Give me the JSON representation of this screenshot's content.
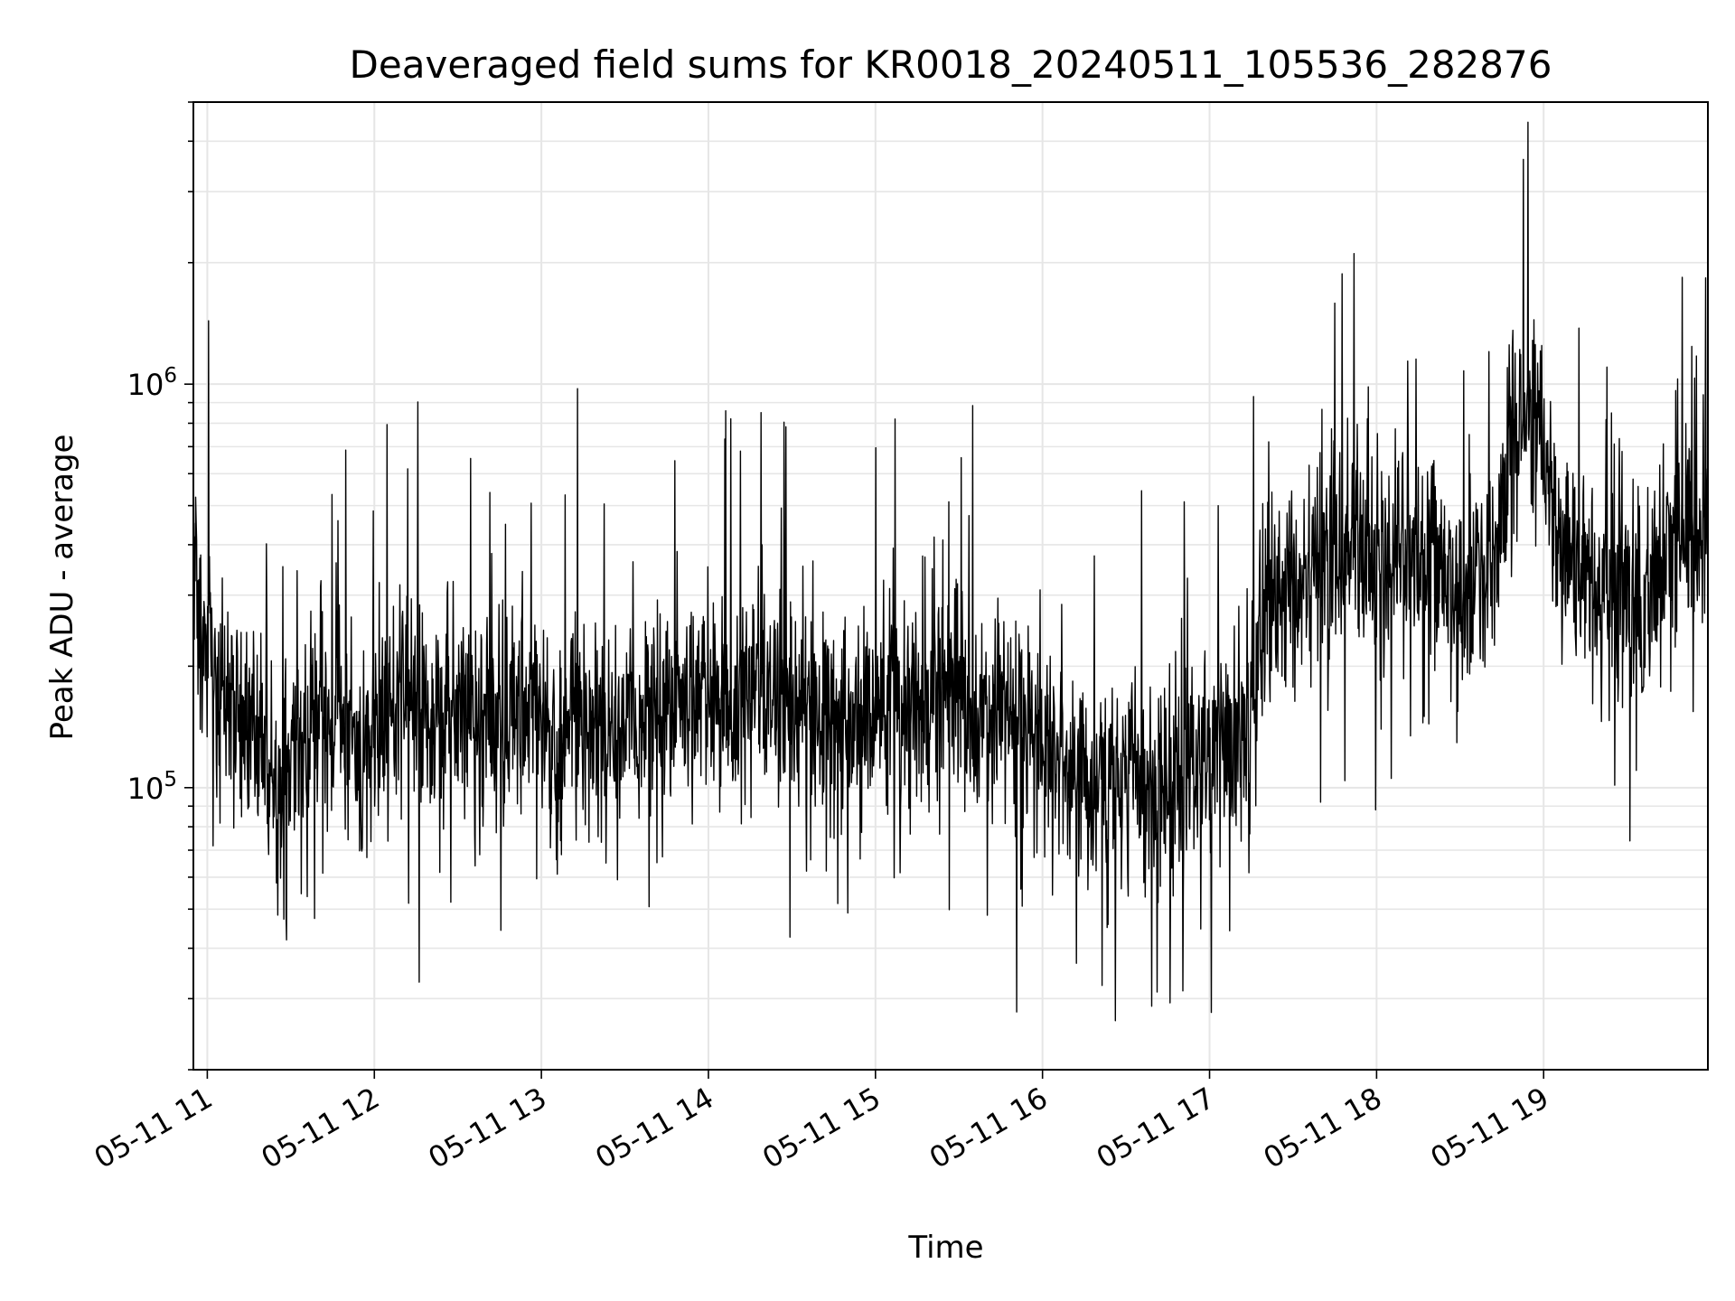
{
  "chart_data": {
    "type": "line",
    "title": "Deaveraged field sums for KR0018_20240511_105536_282876",
    "xlabel": "Time",
    "ylabel": "Peak ADU - average",
    "y_scale": "log",
    "y_tick_base": "10",
    "y_ticks": [
      {
        "value": 100000,
        "exponent": "5"
      },
      {
        "value": 1000000,
        "exponent": "6"
      }
    ],
    "ylim": [
      20000,
      5000000
    ],
    "x_range": [
      "2024-05-11 10:55",
      "2024-05-11 19:59"
    ],
    "x_ticks": [
      {
        "time": "2024-05-11 11:00",
        "label": "05-11 11"
      },
      {
        "time": "2024-05-11 12:00",
        "label": "05-11 12"
      },
      {
        "time": "2024-05-11 13:00",
        "label": "05-11 13"
      },
      {
        "time": "2024-05-11 14:00",
        "label": "05-11 14"
      },
      {
        "time": "2024-05-11 15:00",
        "label": "05-11 15"
      },
      {
        "time": "2024-05-11 16:00",
        "label": "05-11 16"
      },
      {
        "time": "2024-05-11 17:00",
        "label": "05-11 17"
      },
      {
        "time": "2024-05-11 18:00",
        "label": "05-11 18"
      },
      {
        "time": "2024-05-11 19:00",
        "label": "05-11 19"
      }
    ],
    "grid": true,
    "series": [
      {
        "color": "#000000",
        "points": [
          [
            "2024-05-11 10:55",
            300000
          ],
          [
            "2024-05-11 11:05",
            180000
          ],
          [
            "2024-05-11 11:15",
            150000
          ],
          [
            "2024-05-11 11:25",
            100000
          ],
          [
            "2024-05-11 11:35",
            140000
          ],
          [
            "2024-05-11 11:45",
            160000
          ],
          [
            "2024-05-11 11:55",
            110000
          ],
          [
            "2024-05-11 12:05",
            150000
          ],
          [
            "2024-05-11 12:15",
            170000
          ],
          [
            "2024-05-11 12:25",
            140000
          ],
          [
            "2024-05-11 12:35",
            160000
          ],
          [
            "2024-05-11 12:45",
            150000
          ],
          [
            "2024-05-11 12:55",
            160000
          ],
          [
            "2024-05-11 13:05",
            130000
          ],
          [
            "2024-05-11 13:15",
            140000
          ],
          [
            "2024-05-11 13:25",
            130000
          ],
          [
            "2024-05-11 13:35",
            150000
          ],
          [
            "2024-05-11 13:45",
            180000
          ],
          [
            "2024-05-11 13:55",
            170000
          ],
          [
            "2024-05-11 14:05",
            160000
          ],
          [
            "2024-05-11 14:15",
            180000
          ],
          [
            "2024-05-11 14:25",
            170000
          ],
          [
            "2024-05-11 14:35",
            160000
          ],
          [
            "2024-05-11 14:45",
            150000
          ],
          [
            "2024-05-11 14:55",
            140000
          ],
          [
            "2024-05-11 15:05",
            170000
          ],
          [
            "2024-05-11 15:15",
            160000
          ],
          [
            "2024-05-11 15:25",
            180000
          ],
          [
            "2024-05-11 15:35",
            150000
          ],
          [
            "2024-05-11 15:45",
            160000
          ],
          [
            "2024-05-11 15:55",
            140000
          ],
          [
            "2024-05-11 16:05",
            120000
          ],
          [
            "2024-05-11 16:15",
            110000
          ],
          [
            "2024-05-11 16:25",
            110000
          ],
          [
            "2024-05-11 16:35",
            100000
          ],
          [
            "2024-05-11 16:45",
            100000
          ],
          [
            "2024-05-11 16:55",
            120000
          ],
          [
            "2024-05-11 17:05",
            130000
          ],
          [
            "2024-05-11 17:15",
            140000
          ],
          [
            "2024-05-11 17:20",
            300000
          ],
          [
            "2024-05-11 17:30",
            320000
          ],
          [
            "2024-05-11 17:40",
            350000
          ],
          [
            "2024-05-11 17:50",
            400000
          ],
          [
            "2024-05-11 18:00",
            380000
          ],
          [
            "2024-05-11 18:10",
            400000
          ],
          [
            "2024-05-11 18:20",
            370000
          ],
          [
            "2024-05-11 18:30",
            330000
          ],
          [
            "2024-05-11 18:40",
            350000
          ],
          [
            "2024-05-11 18:50",
            650000
          ],
          [
            "2024-05-11 18:55",
            900000
          ],
          [
            "2024-05-11 19:00",
            700000
          ],
          [
            "2024-05-11 19:05",
            450000
          ],
          [
            "2024-05-11 19:15",
            300000
          ],
          [
            "2024-05-11 19:25",
            280000
          ],
          [
            "2024-05-11 19:35",
            300000
          ],
          [
            "2024-05-11 19:45",
            400000
          ],
          [
            "2024-05-11 19:55",
            450000
          ]
        ]
      }
    ]
  }
}
